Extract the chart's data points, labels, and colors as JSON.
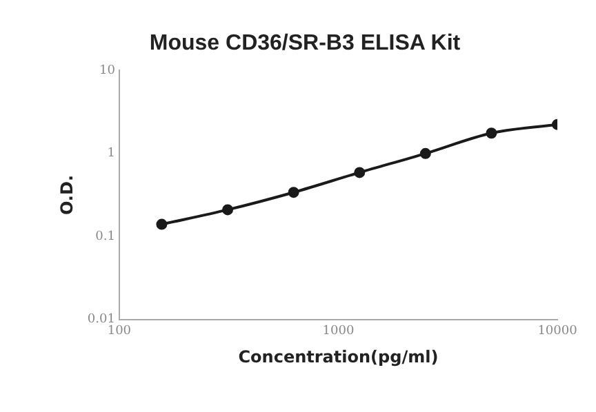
{
  "chart_data": {
    "type": "line",
    "title": "Mouse CD36/SR-B3 ELISA Kit",
    "xlabel": "Concentration(pg/ml)",
    "ylabel": "O.D.",
    "x": [
      156.25,
      312.5,
      625,
      1250,
      2500,
      5000,
      10000
    ],
    "series": [
      {
        "color": "#1a1a1a",
        "values": [
          0.14,
          0.21,
          0.34,
          0.59,
          1.0,
          1.76,
          2.24
        ]
      }
    ],
    "xlim": [
      100,
      10000
    ],
    "xticks": [
      100,
      1000,
      10000
    ],
    "ylim": [
      0.01,
      10
    ],
    "yticks": [
      0.01,
      0.1,
      1,
      10
    ],
    "log": "xy",
    "grid": false,
    "legend": false,
    "marker": "circle",
    "line_style": "solid"
  }
}
